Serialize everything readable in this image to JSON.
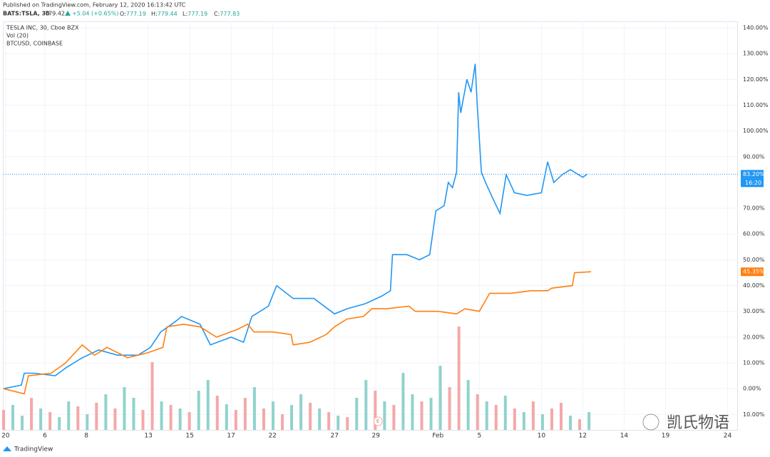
{
  "header": {
    "published": "Published on TradingView.com, February 12, 2020 16:13:42 UTC",
    "symbol": "BATS:TSLA, 30",
    "price": "779.42",
    "change": "+5.04 (+0.65%)",
    "ohlc": [
      [
        "O:",
        "777.19"
      ],
      [
        "H:",
        "779.44"
      ],
      [
        "L:",
        "777.19"
      ],
      [
        "C:",
        "777.83"
      ]
    ]
  },
  "legend": [
    "TESLA INC, 30, Cboe BZX",
    "Vol (20)",
    "BTCUSD, COINBASE"
  ],
  "footer": "TradingView",
  "watermark": "凯氏物语",
  "chart_data": {
    "type": "line",
    "xlim": [
      0,
      35.5
    ],
    "xticks": [
      {
        "value": 0.1,
        "label": "20"
      },
      {
        "value": 2,
        "label": "6"
      },
      {
        "value": 4,
        "label": "8"
      },
      {
        "value": 7,
        "label": "13"
      },
      {
        "value": 9,
        "label": "15"
      },
      {
        "value": 11,
        "label": "17"
      },
      {
        "value": 13,
        "label": "22"
      },
      {
        "value": 16,
        "label": "27"
      },
      {
        "value": 18,
        "label": "29"
      },
      {
        "value": 21,
        "label": "Feb"
      },
      {
        "value": 23,
        "label": "5"
      },
      {
        "value": 26,
        "label": "10"
      },
      {
        "value": 28,
        "label": "12"
      },
      {
        "value": 30,
        "label": "14"
      },
      {
        "value": 32,
        "label": "19"
      },
      {
        "value": 35,
        "label": "24"
      }
    ],
    "ylim": [
      -16,
      142.5
    ],
    "yticks": [
      {
        "value": 140,
        "label": "140.00%"
      },
      {
        "value": 130,
        "label": "130.00%"
      },
      {
        "value": 120,
        "label": "120.00%"
      },
      {
        "value": 110,
        "label": "110.00%"
      },
      {
        "value": 100,
        "label": "100.00%"
      },
      {
        "value": 90,
        "label": "90.00%"
      },
      {
        "value": 70,
        "label": "70.00%"
      },
      {
        "value": 60,
        "label": "60.00%"
      },
      {
        "value": 50,
        "label": "50.00%"
      },
      {
        "value": 40,
        "label": "40.00%"
      },
      {
        "value": 30,
        "label": "30.00%"
      },
      {
        "value": 20,
        "label": "20.00%"
      },
      {
        "value": 10,
        "label": "10.00%"
      },
      {
        "value": 0,
        "label": "0.00%"
      },
      {
        "value": -10,
        "label": "10.00%"
      }
    ],
    "grid": true,
    "event_marker": {
      "x": 18.1,
      "label": "E"
    },
    "series": [
      {
        "name": "TESLA INC",
        "color": "#2196f3",
        "last_label": "16:20",
        "value_labels": [
          "83.20%"
        ],
        "x": [
          0,
          0.86,
          1.0,
          1.5,
          2.5,
          3,
          3.8,
          4.6,
          5.5,
          6.5,
          7.1,
          7.6,
          8.3,
          8.6,
          9.5,
          10.0,
          11,
          11.6,
          12,
          12.8,
          13.2,
          14,
          15,
          16,
          16.6,
          17.5,
          18.3,
          18.7,
          18.8,
          19.5,
          20.1,
          20.6,
          20.9,
          21.3,
          21.5,
          21.7,
          21.9,
          22.0,
          22.1,
          22.4,
          22.6,
          22.8,
          22.9,
          23.1,
          23.3,
          23.7,
          24.0,
          24.3,
          24.7,
          25.3,
          26.0,
          26.3,
          26.6,
          27.0,
          27.4,
          28.0,
          28.2
        ],
        "values": [
          0,
          1.4,
          6,
          6,
          5,
          8,
          12,
          15,
          13,
          13,
          16,
          22,
          26,
          28,
          25,
          17,
          20,
          18,
          28,
          32,
          40,
          35,
          35,
          29,
          31,
          33,
          36,
          38,
          52,
          52,
          50,
          52,
          69,
          71,
          80,
          78,
          84,
          115,
          107,
          120,
          115,
          126,
          110,
          84,
          80,
          73,
          68,
          83,
          76,
          75,
          76,
          88,
          80,
          83,
          85,
          82,
          83.2
        ]
      },
      {
        "name": "BTCUSD",
        "color": "#ff7f0e",
        "value_labels": [
          "45.35%"
        ],
        "x": [
          0,
          1,
          1.2,
          2.3,
          3,
          3.8,
          4.4,
          5,
          6,
          7,
          7.7,
          7.9,
          8.7,
          9.5,
          10.3,
          11.3,
          11.8,
          12.1,
          13.0,
          13.9,
          14.0,
          14.8,
          15.6,
          16.0,
          16.6,
          17.4,
          17.8,
          18.5,
          19.6,
          19.9,
          21.0,
          21.9,
          22.3,
          23.0,
          23.5,
          24.5,
          25.5,
          26.3,
          26.5,
          27.5,
          27.6,
          28.4
        ],
        "values": [
          0,
          -2,
          5,
          6,
          10,
          17,
          13,
          16,
          12,
          14,
          16,
          24,
          25,
          24,
          20,
          23,
          25,
          22,
          22,
          21,
          17,
          18,
          21,
          24,
          27,
          28,
          31,
          31,
          32,
          30,
          30,
          29,
          31,
          30,
          37,
          37,
          38,
          38,
          39,
          40,
          45,
          45.35
        ]
      }
    ],
    "volume": {
      "vlim": [
        0,
        150
      ],
      "xlim": [
        0,
        28.3
      ],
      "values": [
        28,
        35,
        20,
        45,
        30,
        25,
        18,
        40,
        33,
        22,
        38,
        50,
        30,
        60,
        45,
        28,
        95,
        40,
        35,
        30,
        25,
        55,
        70,
        48,
        36,
        28,
        45,
        60,
        30,
        40,
        22,
        35,
        50,
        38,
        30,
        25,
        20,
        18,
        45,
        70,
        55,
        40,
        35,
        80,
        50,
        40,
        45,
        90,
        60,
        145,
        70,
        50,
        40,
        35,
        48,
        30,
        25,
        40,
        22,
        30,
        38,
        20,
        15,
        25
      ],
      "colors": [
        "#f4a8a8",
        "#8fd3cc",
        "#8fd3cc",
        "#f4a8a8",
        "#8fd3cc",
        "#f4a8a8",
        "#8fd3cc",
        "#8fd3cc",
        "#f4a8a8",
        "#8fd3cc",
        "#f4a8a8",
        "#8fd3cc",
        "#f4a8a8",
        "#8fd3cc",
        "#8fd3cc",
        "#f4a8a8",
        "#f4a8a8",
        "#8fd3cc",
        "#f4a8a8",
        "#8fd3cc",
        "#f4a8a8",
        "#8fd3cc",
        "#8fd3cc",
        "#f4a8a8",
        "#8fd3cc",
        "#f4a8a8",
        "#f4a8a8",
        "#8fd3cc",
        "#f4a8a8",
        "#8fd3cc",
        "#f4a8a8",
        "#8fd3cc",
        "#8fd3cc",
        "#f4a8a8",
        "#8fd3cc",
        "#f4a8a8",
        "#8fd3cc",
        "#f4a8a8",
        "#8fd3cc",
        "#8fd3cc",
        "#f4a8a8",
        "#8fd3cc",
        "#f4a8a8",
        "#8fd3cc",
        "#8fd3cc",
        "#f4a8a8",
        "#8fd3cc",
        "#8fd3cc",
        "#f4a8a8",
        "#f4a8a8",
        "#8fd3cc",
        "#f4a8a8",
        "#8fd3cc",
        "#f4a8a8",
        "#8fd3cc",
        "#f4a8a8",
        "#8fd3cc",
        "#f4a8a8",
        "#8fd3cc",
        "#f4a8a8",
        "#f4a8a8",
        "#8fd3cc",
        "#f4a8a8",
        "#8fd3cc"
      ]
    }
  }
}
